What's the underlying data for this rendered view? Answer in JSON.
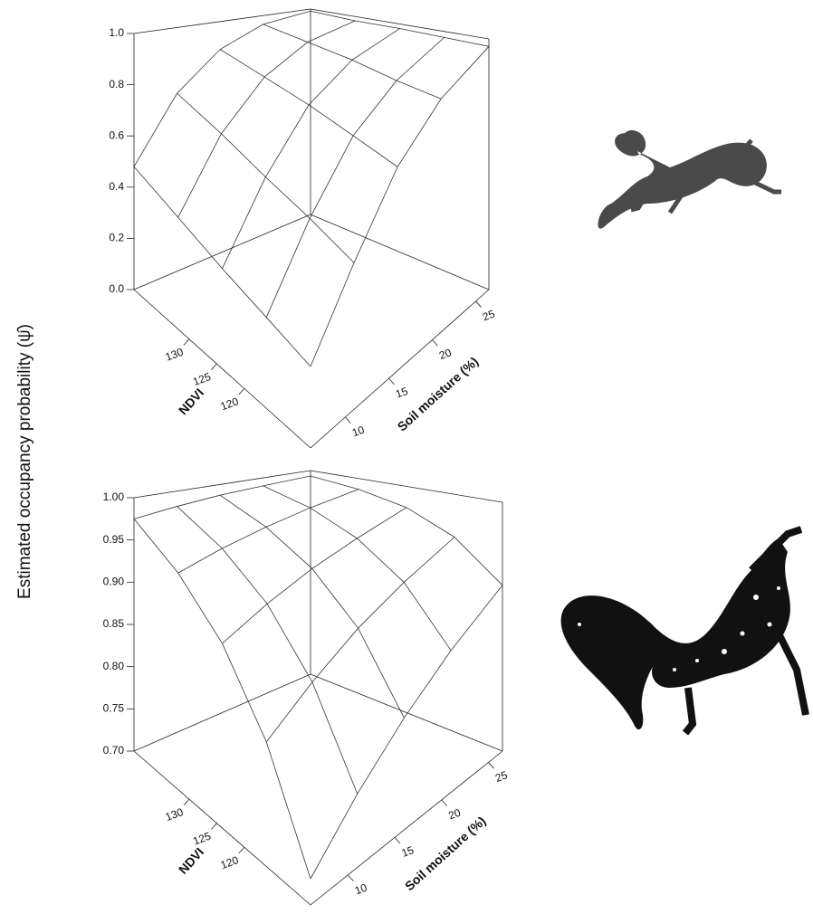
{
  "chart_data": [
    {
      "type": "surface",
      "zlabel": "Estimated occupancy probability (ψ̂)",
      "xlabel": "NDVI",
      "ylabel": "Soil moisture (%)",
      "xlim": [
        108,
        140
      ],
      "xticks": [
        120,
        125,
        130
      ],
      "ylim": [
        6,
        26.5
      ],
      "yticks": [
        10,
        15,
        20,
        25
      ],
      "zlim": [
        0,
        1
      ],
      "zticks": [
        {
          "value": 0,
          "label": "0.0"
        },
        0.2,
        0.4,
        0.6,
        0.8,
        {
          "value": 1,
          "label": "1.0"
        }
      ],
      "x": [
        108,
        116,
        124,
        132,
        140
      ],
      "y": [
        6,
        11,
        16,
        21,
        26.5
      ],
      "z": [
        [
          0.3,
          0.55,
          0.78,
          0.91,
          0.97
        ],
        [
          0.34,
          0.6,
          0.81,
          0.92,
          0.975
        ],
        [
          0.38,
          0.64,
          0.84,
          0.94,
          0.98
        ],
        [
          0.43,
          0.69,
          0.86,
          0.95,
          0.98
        ],
        [
          0.48,
          0.73,
          0.88,
          0.96,
          0.99
        ]
      ],
      "color": "#333333"
    },
    {
      "type": "surface",
      "xlabel": "NDVI",
      "ylabel": "Soil moisture (%)",
      "xlim": [
        108,
        140
      ],
      "xticks": [
        120,
        125,
        130
      ],
      "ylim": [
        6,
        26.5
      ],
      "yticks": [
        10,
        15,
        20,
        25
      ],
      "zlim": [
        0.7,
        1
      ],
      "zticks": [
        {
          "value": 0.7,
          "label": "0.70"
        },
        0.75,
        {
          "value": 0.8,
          "label": "0.80"
        },
        0.85,
        {
          "value": 0.9,
          "label": "0.90"
        },
        0.95,
        {
          "value": 1,
          "label": "1.00"
        }
      ],
      "x": [
        108,
        116,
        124,
        132,
        140
      ],
      "y": [
        6,
        11,
        16,
        21,
        26.5
      ],
      "z": [
        [
          0.729,
          0.783,
          0.829,
          0.867,
          0.9
        ],
        [
          0.84,
          0.875,
          0.905,
          0.927,
          0.946
        ],
        [
          0.911,
          0.932,
          0.949,
          0.961,
          0.972
        ],
        [
          0.952,
          0.964,
          0.973,
          0.98,
          0.985
        ],
        [
          0.975,
          0.981,
          0.986,
          0.989,
          0.992
        ]
      ],
      "color": "#333333"
    }
  ]
}
